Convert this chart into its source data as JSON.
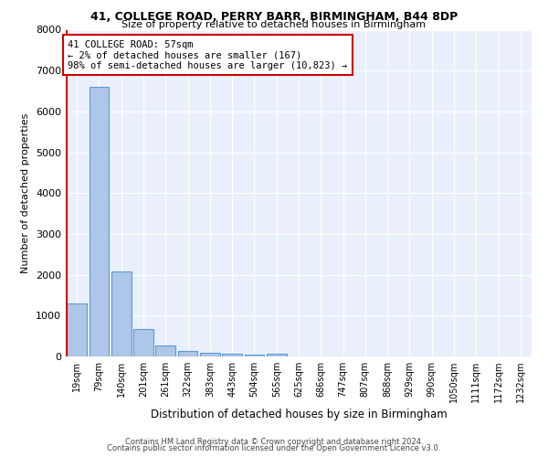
{
  "title1": "41, COLLEGE ROAD, PERRY BARR, BIRMINGHAM, B44 8DP",
  "title2": "Size of property relative to detached houses in Birmingham",
  "xlabel": "Distribution of detached houses by size in Birmingham",
  "ylabel": "Number of detached properties",
  "footer1": "Contains HM Land Registry data © Crown copyright and database right 2024.",
  "footer2": "Contains public sector information licensed under the Open Government Licence v3.0.",
  "bar_labels": [
    "19sqm",
    "79sqm",
    "140sqm",
    "201sqm",
    "261sqm",
    "322sqm",
    "383sqm",
    "443sqm",
    "504sqm",
    "565sqm",
    "625sqm",
    "686sqm",
    "747sqm",
    "807sqm",
    "868sqm",
    "929sqm",
    "990sqm",
    "1050sqm",
    "1111sqm",
    "1172sqm",
    "1232sqm"
  ],
  "bar_values": [
    1300,
    6600,
    2080,
    680,
    270,
    140,
    95,
    60,
    55,
    60,
    0,
    0,
    0,
    0,
    0,
    0,
    0,
    0,
    0,
    0,
    0
  ],
  "bar_color": "#aec6e8",
  "bar_edge_color": "#5b9bd5",
  "highlight_color": "#cc0000",
  "annotation_line1": "41 COLLEGE ROAD: 57sqm",
  "annotation_line2": "← 2% of detached houses are smaller (167)",
  "annotation_line3": "98% of semi-detached houses are larger (10,823) →",
  "annotation_box_color": "#ffffff",
  "annotation_border_color": "#cc0000",
  "ylim": [
    0,
    8000
  ],
  "yticks": [
    0,
    1000,
    2000,
    3000,
    4000,
    5000,
    6000,
    7000,
    8000
  ],
  "plot_bg": "#eaf0fb"
}
